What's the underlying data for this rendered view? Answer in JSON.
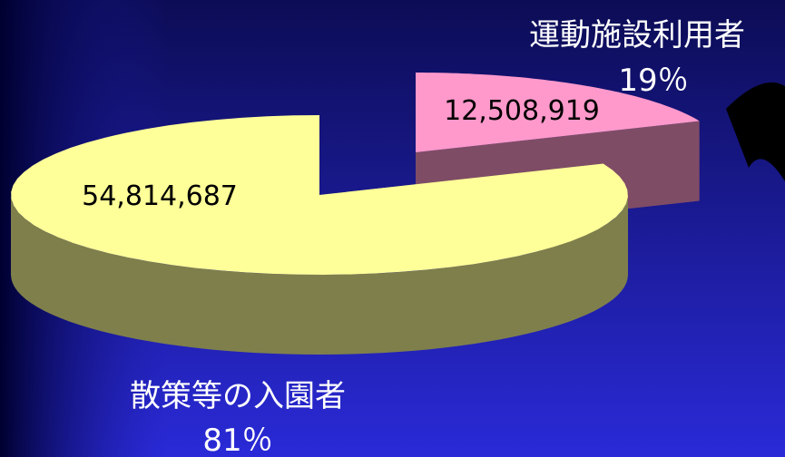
{
  "chart_data": {
    "type": "pie",
    "categories": [
      "散策等の入園者",
      "運動施設利用者"
    ],
    "values": [
      54814687,
      12508919
    ],
    "value_labels": [
      "54,814,687",
      "12,508,919"
    ],
    "percents": [
      81,
      19
    ],
    "percent_labels": [
      "81％",
      "19％"
    ],
    "colors": [
      "#ffff99",
      "#ff99cc"
    ],
    "side_colors": [
      "#7f7f4c",
      "#7f4c66"
    ],
    "exploded": [
      false,
      true
    ]
  }
}
